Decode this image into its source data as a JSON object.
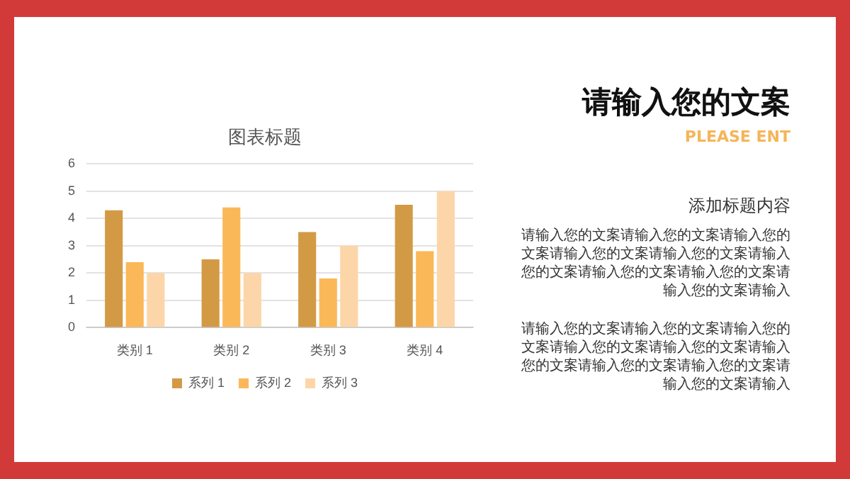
{
  "chart_data": {
    "type": "bar",
    "title": "图表标题",
    "categories": [
      "类别 1",
      "类别 2",
      "类别 3",
      "类别 4"
    ],
    "series": [
      {
        "name": "系列 1",
        "color": "#d39a45",
        "values": [
          4.3,
          2.5,
          3.5,
          4.5
        ]
      },
      {
        "name": "系列 2",
        "color": "#fbb858",
        "values": [
          2.4,
          4.4,
          1.8,
          2.8
        ]
      },
      {
        "name": "系列 3",
        "color": "#fcd6a8",
        "values": [
          2,
          2,
          3,
          5
        ]
      }
    ],
    "ylim": [
      0,
      6
    ],
    "yticks": [
      0,
      1,
      2,
      3,
      4,
      5,
      6
    ],
    "grid": "y",
    "legend": "bottom",
    "annotations": [
      "请输入您的文案",
      "PLEASE ENT",
      "添加标题内容",
      "请输入您的文案请输入您的文案请输入您的文案请输入您的文案请输入您的文案请输入您的文案请输入您的文案请输入您的文案请输入您的文案请输入",
      "请输入您的文案请输入您的文案请输入您的文案请输入您的文案请输入您的文案请输入您的文案请输入您的文案请输入您的文案请输入您的文案请输入"
    ]
  }
}
